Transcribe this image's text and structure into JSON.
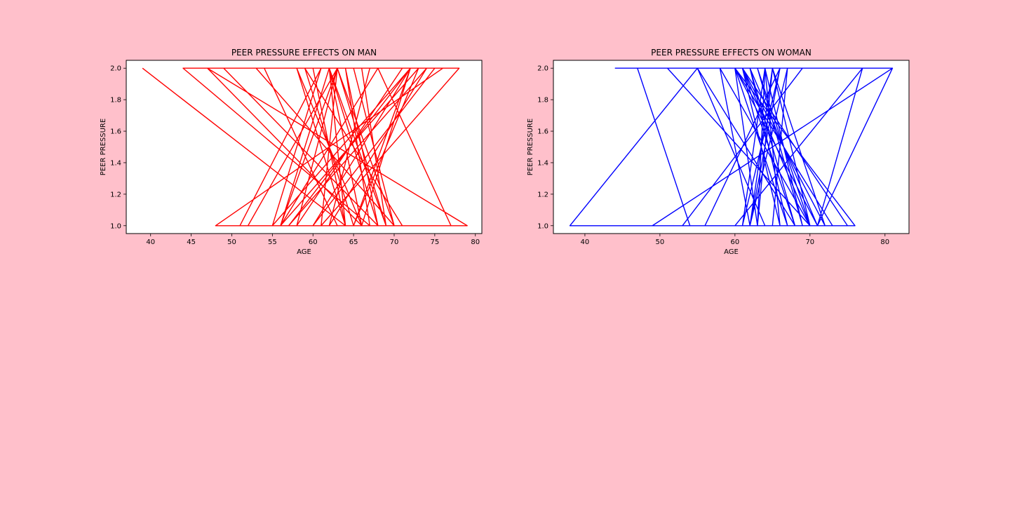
{
  "colors": {
    "figure_background": "#ffc0cb",
    "axes_background": "#ffffff"
  },
  "chart_data": [
    {
      "type": "line",
      "title": "PEER PRESSURE EFFECTS ON MAN",
      "xlabel": "AGE",
      "ylabel": "PEER PRESSURE",
      "xlim": [
        37,
        80.8
      ],
      "ylim": [
        0.95,
        2.05
      ],
      "xticks": [
        40,
        45,
        50,
        55,
        60,
        65,
        70,
        75,
        80
      ],
      "yticks": [
        1.0,
        1.2,
        1.4,
        1.6,
        1.8,
        2.0
      ],
      "grid": false,
      "series": [
        {
          "color": "#ff0000",
          "x": [
            39,
            64,
            48,
            76,
            44,
            67,
            51,
            61,
            55,
            72,
            60,
            79,
            47,
            66,
            52,
            63,
            58,
            71,
            49,
            68,
            57,
            74,
            62,
            67,
            53,
            70,
            64,
            62,
            56,
            73,
            65,
            59,
            78,
            61,
            69,
            66,
            54,
            63,
            60,
            75,
            58,
            64,
            57,
            72,
            66,
            62,
            68,
            64,
            67,
            61,
            63,
            70,
            65,
            59,
            71,
            62,
            67,
            60,
            64,
            77,
            68,
            56,
            63,
            69,
            62,
            66,
            58,
            72,
            65,
            60
          ],
          "y": [
            2,
            1,
            1,
            2,
            2,
            1,
            1,
            2,
            1,
            2,
            1,
            1,
            2,
            1,
            1,
            2,
            1,
            2,
            2,
            1,
            1,
            2,
            1,
            2,
            2,
            1,
            1,
            2,
            1,
            2,
            1,
            2,
            2,
            1,
            1,
            2,
            2,
            1,
            1,
            2,
            2,
            1,
            1,
            2,
            1,
            2,
            1,
            2,
            1,
            1,
            2,
            1,
            2,
            2,
            1,
            1,
            2,
            2,
            1,
            1,
            2,
            1,
            2,
            1,
            2,
            1,
            2,
            2,
            1,
            1
          ]
        }
      ]
    },
    {
      "type": "line",
      "title": "PEER PRESSURE EFFECTS ON WOMAN",
      "xlabel": "AGE",
      "ylabel": "PEER PRESSURE",
      "xlim": [
        35.8,
        83.2
      ],
      "ylim": [
        0.95,
        2.05
      ],
      "xticks": [
        40,
        50,
        60,
        70,
        80
      ],
      "yticks": [
        1.0,
        1.2,
        1.4,
        1.6,
        1.8,
        2.0
      ],
      "grid": false,
      "series": [
        {
          "color": "#0000ff",
          "x": [
            44,
            81,
            47,
            54,
            47,
            54,
            38,
            55,
            60,
            71,
            81,
            49,
            60,
            75,
            61,
            51,
            70,
            61,
            66,
            56,
            71,
            77,
            60,
            64,
            55,
            68,
            61,
            63,
            70,
            58,
            62,
            67,
            65,
            53,
            69,
            60,
            76,
            61,
            64,
            60,
            73,
            62,
            66,
            61,
            72,
            65,
            63,
            60,
            67,
            62,
            68,
            61,
            64,
            69,
            63,
            60,
            67,
            62,
            65,
            70,
            61,
            66,
            64,
            63,
            71,
            62
          ],
          "y": [
            2,
            2,
            2,
            1,
            2,
            1,
            1,
            2,
            2,
            1,
            2,
            1,
            1,
            1,
            2,
            2,
            1,
            1,
            2,
            1,
            1,
            2,
            1,
            1,
            2,
            1,
            2,
            2,
            1,
            2,
            1,
            2,
            1,
            1,
            2,
            2,
            1,
            1,
            2,
            2,
            1,
            1,
            2,
            2,
            1,
            2,
            1,
            2,
            1,
            2,
            1,
            1,
            2,
            1,
            2,
            2,
            1,
            1,
            2,
            1,
            2,
            1,
            2,
            1,
            1,
            2
          ]
        }
      ]
    }
  ]
}
